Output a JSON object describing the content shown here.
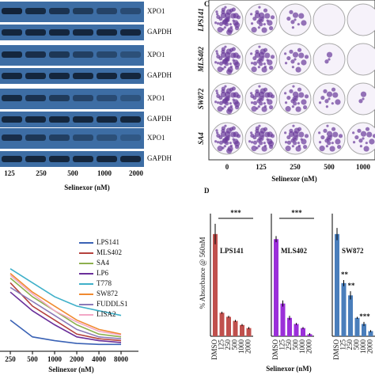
{
  "panel_blot": {
    "bands": [
      "XPO1",
      "GAPDH"
    ],
    "doses": [
      125,
      250,
      500,
      1000,
      2000
    ],
    "xlabel": "Selinexor (nM)"
  },
  "panel_c": {
    "letter": "C",
    "cell_lines": [
      "LPS141",
      "MLS402",
      "SW872",
      "SA4"
    ],
    "doses": [
      0,
      125,
      250,
      500,
      1000
    ],
    "xlabel": "Selinexor (nM)"
  },
  "panel_line": {
    "type": "line",
    "x": [
      250,
      500,
      1000,
      2000,
      4000,
      8000
    ],
    "xscale": "log",
    "xlim": [
      181,
      15600
    ],
    "ylim": [
      0,
      100
    ],
    "xlabel": "Selinexor (nM)",
    "series": [
      {
        "name": "LPS141",
        "color": "#3a62b5",
        "values": [
          30,
          12,
          8,
          5,
          4,
          4
        ]
      },
      {
        "name": "MLS402",
        "color": "#b5413d",
        "values": [
          70,
          45,
          30,
          15,
          10,
          8
        ]
      },
      {
        "name": "SA4",
        "color": "#8db04e",
        "values": [
          75,
          55,
          40,
          25,
          15,
          12
        ]
      },
      {
        "name": "LP6",
        "color": "#6a2f9a",
        "values": [
          60,
          40,
          25,
          12,
          8,
          6
        ]
      },
      {
        "name": "T778",
        "color": "#3fb0c9",
        "values": [
          85,
          70,
          55,
          45,
          40,
          35
        ]
      },
      {
        "name": "SW872",
        "color": "#f08a30",
        "values": [
          80,
          60,
          45,
          30,
          20,
          15
        ]
      },
      {
        "name": "FUDDLS1",
        "color": "#8b7ab8",
        "values": [
          65,
          50,
          35,
          20,
          12,
          10
        ]
      },
      {
        "name": "LISA2",
        "color": "#f2a7c6",
        "values": [
          78,
          58,
          40,
          28,
          18,
          14
        ]
      }
    ]
  },
  "panel_d": {
    "type": "bar",
    "letter": "D",
    "ylabel": "% Absorbance @ 560nM",
    "xlabel": "Selinexor (nM)",
    "ylim": [
      0,
      120
    ],
    "categories": [
      "DMSO",
      125,
      250,
      500,
      1000,
      2000
    ],
    "charts": [
      {
        "name": "LPS141",
        "color": "#c0504d",
        "values": [
          100,
          23,
          19,
          15,
          11,
          8
        ],
        "errors": [
          10,
          1,
          1,
          1,
          1,
          1
        ],
        "annotations": [
          "***"
        ]
      },
      {
        "name": "MLS402",
        "color": "#9b30d9",
        "values": [
          95,
          32,
          18,
          12,
          8,
          2
        ],
        "errors": [
          3,
          3,
          2,
          1,
          1,
          1
        ],
        "annotations": [
          "***"
        ]
      },
      {
        "name": "SW872",
        "color": "#4a7ebb",
        "values": [
          100,
          52,
          40,
          18,
          12,
          5
        ],
        "errors": [
          6,
          3,
          4,
          1,
          2,
          1
        ],
        "annotations": [
          "**",
          "**",
          "***"
        ]
      }
    ]
  }
}
